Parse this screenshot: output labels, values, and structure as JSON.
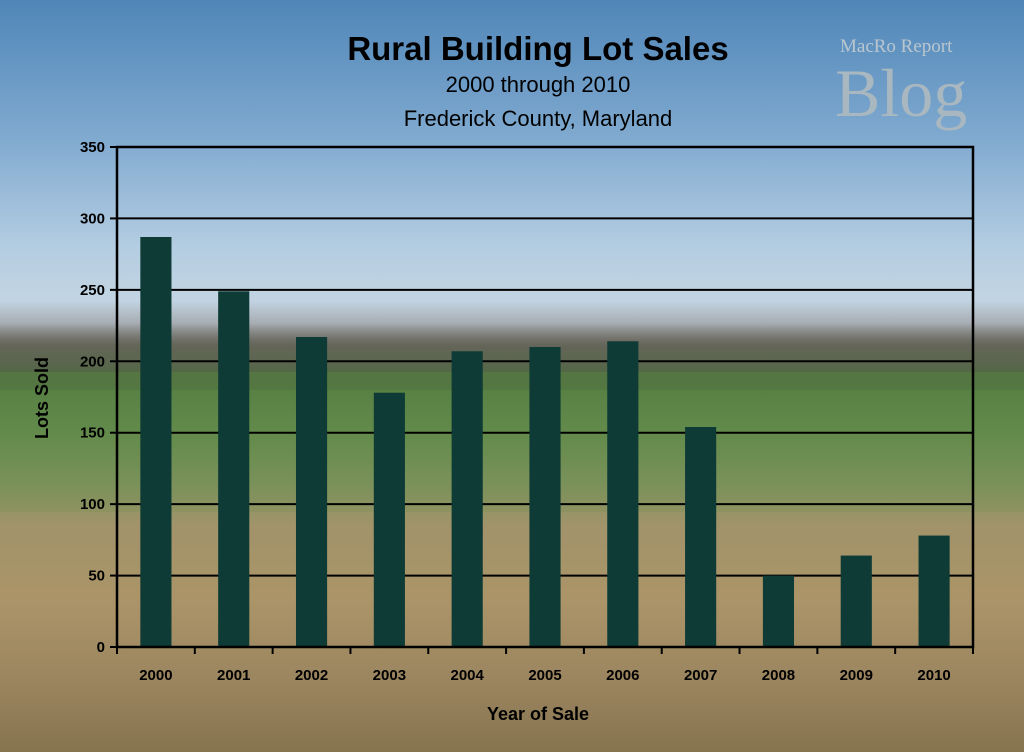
{
  "watermark": {
    "line1": "MacRo Report",
    "line2": "Blog"
  },
  "colors": {
    "bar": "#0e3b35",
    "axis": "#000000",
    "grid": "#000000"
  },
  "chart_data": {
    "type": "bar",
    "title": "Rural Building Lot Sales",
    "subtitle": [
      "2000 through 2010",
      "Frederick County, Maryland"
    ],
    "xlabel": "Year of Sale",
    "ylabel": "Lots Sold",
    "categories": [
      "2000",
      "2001",
      "2002",
      "2003",
      "2004",
      "2005",
      "2006",
      "2007",
      "2008",
      "2009",
      "2010"
    ],
    "values": [
      287,
      249,
      217,
      178,
      207,
      210,
      214,
      154,
      50,
      64,
      78
    ],
    "ylim": [
      0,
      350
    ],
    "yticks": [
      0,
      50,
      100,
      150,
      200,
      250,
      300,
      350
    ],
    "grid": true,
    "legend": "none"
  }
}
